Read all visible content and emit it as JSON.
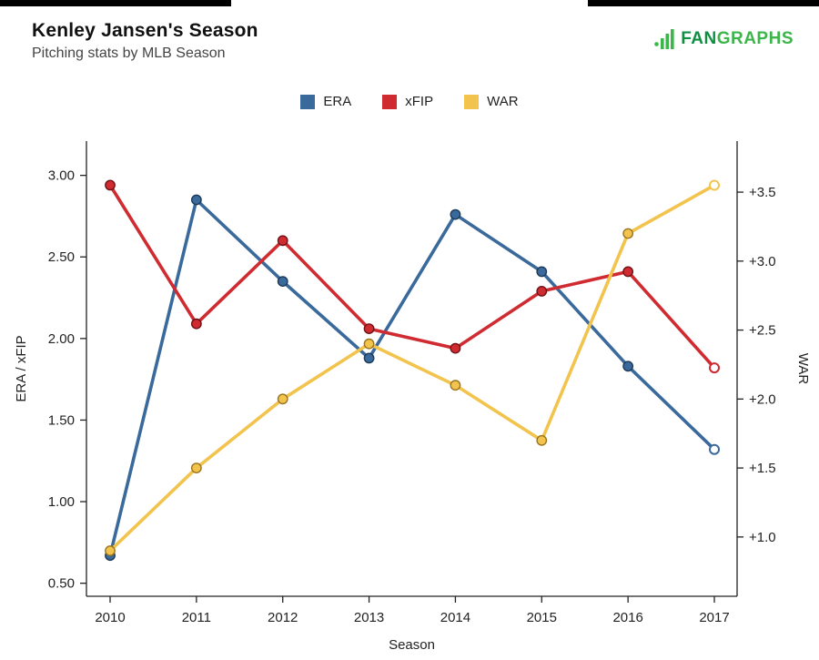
{
  "header": {
    "title": "Kenley Jansen's Season",
    "subtitle": "Pitching stats by MLB Season",
    "logo": {
      "text_fan": "FAN",
      "text_graphs": "GRAPHS",
      "color_fan": "#0f8f43",
      "color_graphs": "#3cb54a",
      "icon_color": "#3cb54a"
    }
  },
  "chart_data": {
    "type": "line",
    "title": "Kenley Jansen's Season",
    "subtitle": "Pitching stats by MLB Season",
    "xlabel": "Season",
    "ylabel_left": "ERA / xFIP",
    "ylabel_right": "WAR",
    "categories": [
      "2010",
      "2011",
      "2012",
      "2013",
      "2014",
      "2015",
      "2016",
      "2017"
    ],
    "series": [
      {
        "name": "ERA",
        "axis": "left",
        "color": "#3a699c",
        "point_stroke": "#1d3a57",
        "last_point_open": true,
        "values": [
          0.67,
          2.85,
          2.35,
          1.88,
          2.76,
          2.41,
          1.83,
          1.32
        ]
      },
      {
        "name": "xFIP",
        "axis": "left",
        "color": "#cf2b31",
        "point_stroke": "#6e1216",
        "last_point_open": true,
        "values": [
          2.94,
          2.09,
          2.6,
          2.06,
          1.94,
          2.29,
          2.41,
          1.82
        ]
      },
      {
        "name": "WAR",
        "axis": "right",
        "color": "#f2c44d",
        "point_stroke": "#9a7420",
        "last_point_open": true,
        "values": [
          0.9,
          1.5,
          2.0,
          2.4,
          2.1,
          1.7,
          3.2,
          3.55
        ]
      }
    ],
    "left_axis": {
      "ticks": [
        "0.50",
        "1.00",
        "1.50",
        "2.00",
        "2.50",
        "3.00"
      ],
      "tick_values": [
        0.5,
        1.0,
        1.5,
        2.0,
        2.5,
        3.0
      ],
      "domain": [
        0.42,
        3.21
      ]
    },
    "right_axis": {
      "ticks": [
        "+1.0",
        "+1.5",
        "+2.0",
        "+2.5",
        "+3.0",
        "+3.5"
      ],
      "tick_values": [
        1.0,
        1.5,
        2.0,
        2.5,
        3.0,
        3.5
      ],
      "domain": [
        0.57,
        3.87
      ]
    },
    "grid": false,
    "legend_position": "top"
  }
}
